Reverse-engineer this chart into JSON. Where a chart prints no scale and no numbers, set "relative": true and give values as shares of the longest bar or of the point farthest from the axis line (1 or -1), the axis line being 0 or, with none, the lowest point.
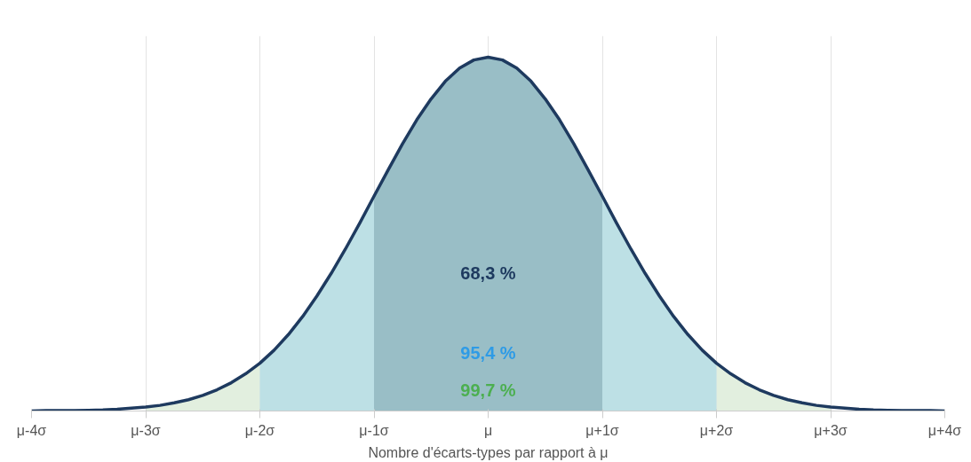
{
  "chart_data": {
    "type": "area",
    "relative": true,
    "xlabel": "Nombre d'écarts-types par rapport à μ",
    "categories": [
      "μ-4σ",
      null,
      null,
      null,
      null,
      null,
      null,
      null,
      "μ-3σ",
      null,
      null,
      null,
      null,
      null,
      null,
      null,
      "μ-2σ",
      null,
      null,
      null,
      null,
      null,
      null,
      null,
      "μ-1σ",
      null,
      null,
      null,
      null,
      null,
      null,
      null,
      "μ",
      null,
      null,
      null,
      null,
      null,
      null,
      null,
      "μ+1σ",
      null,
      null,
      null,
      null,
      null,
      null,
      null,
      "μ+2σ",
      null,
      null,
      null,
      null,
      null,
      null,
      null,
      "μ+3σ",
      null,
      null,
      null,
      null,
      null,
      null,
      null,
      "μ+4σ"
    ],
    "grid": "x",
    "marker": "none",
    "line_style": "solid",
    "series": [
      {
        "type": "area",
        "color": "#e2efdf",
        "values": [
          null,
          null,
          null,
          null,
          null,
          null,
          null,
          null,
          0.011,
          0.016,
          0.023,
          0.032,
          0.044,
          0.06,
          0.08,
          0.105,
          0.135,
          null,
          null,
          null,
          null,
          null,
          null,
          null,
          null,
          null,
          null,
          null,
          null,
          null,
          null,
          null,
          null,
          null,
          null,
          null,
          null,
          null,
          null,
          null,
          null,
          null,
          null,
          null,
          null,
          null,
          null,
          null,
          0.135,
          0.105,
          0.08,
          0.06,
          0.044,
          0.032,
          0.023,
          0.016,
          0.011,
          null,
          null,
          null,
          null,
          null,
          null,
          null,
          null
        ]
      },
      {
        "type": "area",
        "color": "#bde0e5",
        "values": [
          null,
          null,
          null,
          null,
          null,
          null,
          null,
          null,
          null,
          null,
          null,
          null,
          null,
          null,
          null,
          null,
          0.135,
          0.172,
          0.216,
          0.267,
          0.325,
          0.389,
          0.458,
          0.531,
          0.607,
          null,
          null,
          null,
          null,
          null,
          null,
          null,
          null,
          null,
          null,
          null,
          null,
          null,
          null,
          null,
          0.607,
          0.531,
          0.458,
          0.389,
          0.325,
          0.267,
          0.216,
          0.172,
          0.135,
          null,
          null,
          null,
          null,
          null,
          null,
          null,
          null,
          null,
          null,
          null,
          null,
          null,
          null,
          null,
          null
        ]
      },
      {
        "type": "area",
        "color": "#99bec6",
        "values": [
          null,
          null,
          null,
          null,
          null,
          null,
          null,
          null,
          null,
          null,
          null,
          null,
          null,
          null,
          null,
          null,
          null,
          null,
          null,
          null,
          null,
          null,
          null,
          null,
          0.607,
          0.682,
          0.755,
          0.823,
          0.882,
          0.932,
          0.969,
          0.992,
          1,
          0.992,
          0.969,
          0.932,
          0.882,
          0.823,
          0.755,
          0.682,
          0.607,
          null,
          null,
          null,
          null,
          null,
          null,
          null,
          null,
          null,
          null,
          null,
          null,
          null,
          null,
          null,
          null,
          null,
          null,
          null,
          null,
          null,
          null,
          null,
          null
        ]
      },
      {
        "type": "line",
        "color": "#1e3a5f",
        "values": [
          0,
          0.001,
          0.001,
          0.001,
          0.002,
          0.003,
          0.005,
          0.008,
          0.011,
          0.016,
          0.023,
          0.032,
          0.044,
          0.06,
          0.08,
          0.105,
          0.135,
          0.172,
          0.216,
          0.267,
          0.325,
          0.389,
          0.458,
          0.531,
          0.607,
          0.682,
          0.755,
          0.823,
          0.882,
          0.932,
          0.969,
          0.992,
          1,
          0.992,
          0.969,
          0.932,
          0.882,
          0.823,
          0.755,
          0.682,
          0.607,
          0.531,
          0.458,
          0.389,
          0.325,
          0.267,
          0.216,
          0.172,
          0.135,
          0.105,
          0.08,
          0.06,
          0.044,
          0.032,
          0.023,
          0.016,
          0.011,
          0.008,
          0.005,
          0.003,
          0.002,
          0.001,
          0.001,
          0.001,
          0
        ]
      }
    ],
    "annotations": [
      "68,3 %",
      "95,4 %",
      "99,7 %"
    ]
  }
}
